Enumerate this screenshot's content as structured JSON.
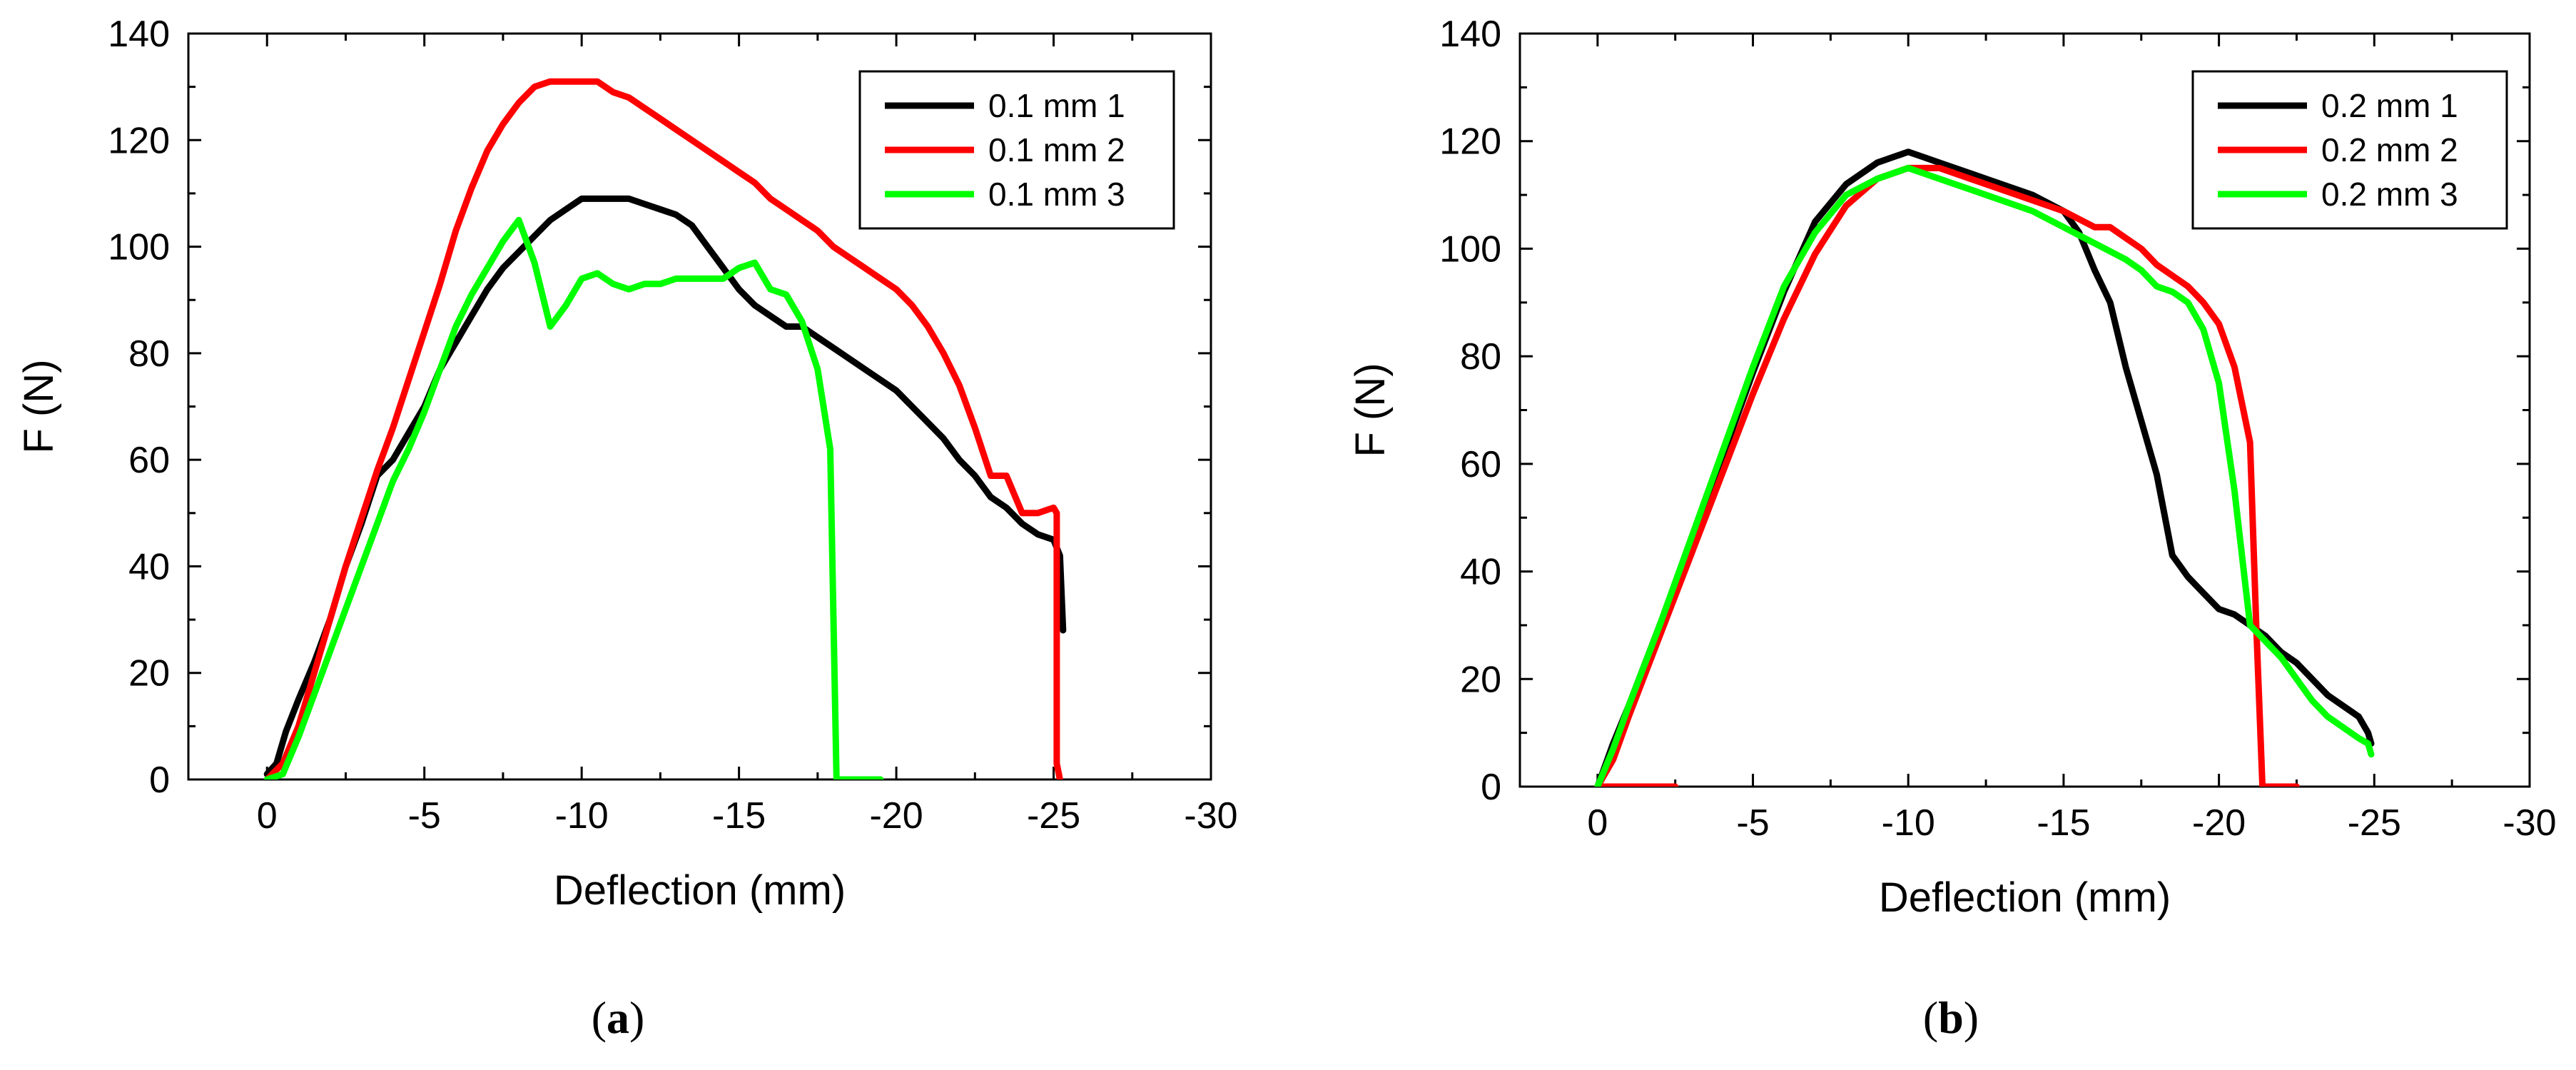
{
  "chart_data": [
    {
      "type": "line",
      "panel_label": "a",
      "title": "",
      "xlabel": "Deflection (mm)",
      "ylabel": "F (N)",
      "xlim": [
        2.5,
        -30
      ],
      "ylim": [
        0,
        140
      ],
      "xticks": [
        0,
        -5,
        -10,
        -15,
        -20,
        -25,
        -30
      ],
      "xtick_labels": [
        "0",
        "-5",
        "-10",
        "-15",
        "-20",
        "-25",
        "-30"
      ],
      "yticks": [
        0,
        20,
        40,
        60,
        80,
        100,
        120,
        140
      ],
      "ytick_labels": [
        "0",
        "20",
        "40",
        "60",
        "80",
        "100",
        "120",
        "140"
      ],
      "legend_position": "top-right",
      "series": [
        {
          "name": "0.1 mm 1",
          "color": "#000000",
          "x": [
            0,
            -0.3,
            -0.6,
            -1,
            -1.5,
            -2,
            -2.5,
            -3,
            -3.5,
            -4,
            -4.5,
            -5,
            -5.5,
            -6,
            -6.5,
            -7,
            -7.5,
            -8,
            -8.5,
            -9,
            -9.5,
            -10,
            -10.5,
            -11,
            -11.5,
            -12,
            -12.5,
            -13,
            -13.5,
            -14,
            -14.5,
            -15,
            -15.5,
            -16,
            -16.5,
            -17,
            -17.5,
            -18,
            -18.5,
            -19,
            -19.5,
            -20,
            -20.5,
            -21,
            -21.5,
            -22,
            -22.5,
            -23,
            -23.5,
            -24,
            -24.5,
            -25,
            -25.2,
            -25.3
          ],
          "y": [
            1,
            3,
            9,
            15,
            22,
            30,
            40,
            48,
            57,
            60,
            65,
            70,
            77,
            82,
            87,
            92,
            96,
            99,
            102,
            105,
            107,
            109,
            109,
            109,
            109,
            108,
            107,
            106,
            104,
            100,
            96,
            92,
            89,
            87,
            85,
            85,
            83,
            81,
            79,
            77,
            75,
            73,
            70,
            67,
            64,
            60,
            57,
            53,
            51,
            48,
            46,
            45,
            42,
            28
          ]
        },
        {
          "name": "0.1 mm 2",
          "color": "#ff0000",
          "x": [
            0,
            -0.5,
            -1,
            -1.5,
            -2,
            -2.5,
            -3,
            -3.5,
            -4,
            -4.5,
            -5,
            -5.5,
            -6,
            -6.5,
            -7,
            -7.5,
            -8,
            -8.5,
            -9,
            -9.5,
            -10,
            -10.5,
            -11,
            -11.5,
            -12,
            -12.5,
            -13,
            -13.5,
            -14,
            -14.5,
            -15,
            -15.5,
            -16,
            -16.5,
            -17,
            -17.5,
            -18,
            -18.5,
            -19,
            -19.5,
            -20,
            -20.5,
            -21,
            -21.5,
            -22,
            -22.5,
            -23,
            -23.5,
            -24,
            -24.5,
            -25,
            -25.1,
            -25.1,
            -25.2
          ],
          "y": [
            0,
            3,
            10,
            20,
            30,
            40,
            49,
            58,
            66,
            75,
            84,
            93,
            103,
            111,
            118,
            123,
            127,
            130,
            131,
            131,
            131,
            131,
            129,
            128,
            126,
            124,
            122,
            120,
            118,
            116,
            114,
            112,
            109,
            107,
            105,
            103,
            100,
            98,
            96,
            94,
            92,
            89,
            85,
            80,
            74,
            66,
            57,
            57,
            50,
            50,
            51,
            50,
            3,
            0
          ]
        },
        {
          "name": "0.1 mm 3",
          "color": "#00ff00",
          "x": [
            0,
            -0.5,
            -1,
            -1.5,
            -2,
            -2.5,
            -3,
            -3.5,
            -4,
            -4.5,
            -5,
            -5.5,
            -6,
            -6.5,
            -7,
            -7.5,
            -8,
            -8.5,
            -9,
            -9.5,
            -10,
            -10.5,
            -11,
            -11.5,
            -12,
            -12.5,
            -13,
            -13.5,
            -14,
            -14.5,
            -15,
            -15.5,
            -16,
            -16.5,
            -17,
            -17.5,
            -17.9,
            -18.1,
            -18.5,
            -19,
            -19.5
          ],
          "y": [
            0,
            1,
            8,
            16,
            24,
            32,
            40,
            48,
            56,
            62,
            69,
            77,
            85,
            91,
            96,
            101,
            105,
            97,
            85,
            89,
            94,
            95,
            93,
            92,
            93,
            93,
            94,
            94,
            94,
            94,
            96,
            97,
            92,
            91,
            86,
            77,
            62,
            0,
            0,
            0,
            0
          ]
        }
      ]
    },
    {
      "type": "line",
      "panel_label": "b",
      "title": "",
      "xlabel": "Deflection (mm)",
      "ylabel": "F (N)",
      "xlim": [
        2.5,
        -30
      ],
      "ylim": [
        0,
        140
      ],
      "xticks": [
        0,
        -5,
        -10,
        -15,
        -20,
        -25,
        -30
      ],
      "xtick_labels": [
        "0",
        "-5",
        "-10",
        "-15",
        "-20",
        "-25",
        "-30"
      ],
      "yticks": [
        0,
        20,
        40,
        60,
        80,
        100,
        120,
        140
      ],
      "ytick_labels": [
        "0",
        "20",
        "40",
        "60",
        "80",
        "100",
        "120",
        "140"
      ],
      "legend_position": "top-right",
      "series": [
        {
          "name": "0.2 mm 1",
          "color": "#000000",
          "x": [
            0,
            -0.5,
            -1,
            -2,
            -3,
            -4,
            -5,
            -6,
            -7,
            -8,
            -9,
            -9.5,
            -10,
            -10.5,
            -11,
            -12,
            -13,
            -14,
            -15,
            -15.5,
            -16,
            -16.5,
            -17,
            -17.5,
            -18,
            -18.5,
            -19,
            -19.5,
            -20,
            -20.5,
            -21,
            -21.5,
            -22,
            -22.5,
            -23,
            -23.5,
            -24,
            -24.5,
            -24.8,
            -24.9
          ],
          "y": [
            0,
            8,
            15,
            30,
            45,
            61,
            77,
            92,
            105,
            112,
            116,
            117,
            118,
            117,
            116,
            114,
            112,
            110,
            107,
            103,
            96,
            90,
            78,
            68,
            58,
            43,
            39,
            36,
            33,
            32,
            30,
            28,
            25,
            23,
            20,
            17,
            15,
            13,
            10,
            8
          ]
        },
        {
          "name": "0.2 mm 2",
          "color": "#ff0000",
          "x": [
            -2.5,
            -1,
            0,
            -0.5,
            -1,
            -2,
            -3,
            -4,
            -5,
            -6,
            -7,
            -8,
            -9,
            -10,
            -11,
            -12,
            -13,
            -14,
            -15,
            -16,
            -16.5,
            -17,
            -17.5,
            -18,
            -18.5,
            -19,
            -19.5,
            -20,
            -20.5,
            -21,
            -21.2,
            -21.4,
            -21.5,
            -22.5
          ],
          "y": [
            0,
            0,
            0,
            5,
            13,
            28,
            43,
            58,
            73,
            87,
            99,
            108,
            113,
            115,
            115,
            113,
            111,
            109,
            107,
            104,
            104,
            102,
            100,
            97,
            95,
            93,
            90,
            86,
            78,
            64,
            30,
            0,
            0,
            0
          ]
        },
        {
          "name": "0.2 mm 3",
          "color": "#00ff00",
          "x": [
            0,
            -0.5,
            -1,
            -2,
            -3,
            -4,
            -5,
            -6,
            -7,
            -8,
            -9,
            -10,
            -11,
            -12,
            -13,
            -14,
            -15,
            -16,
            -17,
            -17.5,
            -18,
            -18.5,
            -19,
            -19.5,
            -20,
            -20.5,
            -21,
            -21.5,
            -22,
            -22.5,
            -23,
            -23.5,
            -24,
            -24.5,
            -24.8,
            -24.9
          ],
          "y": [
            0,
            7,
            15,
            30,
            46,
            62,
            78,
            93,
            103,
            110,
            113,
            115,
            113,
            111,
            109,
            107,
            104,
            101,
            98,
            96,
            93,
            92,
            90,
            85,
            75,
            55,
            30,
            27,
            24,
            20,
            16,
            13,
            11,
            9,
            8,
            6
          ]
        }
      ]
    }
  ]
}
